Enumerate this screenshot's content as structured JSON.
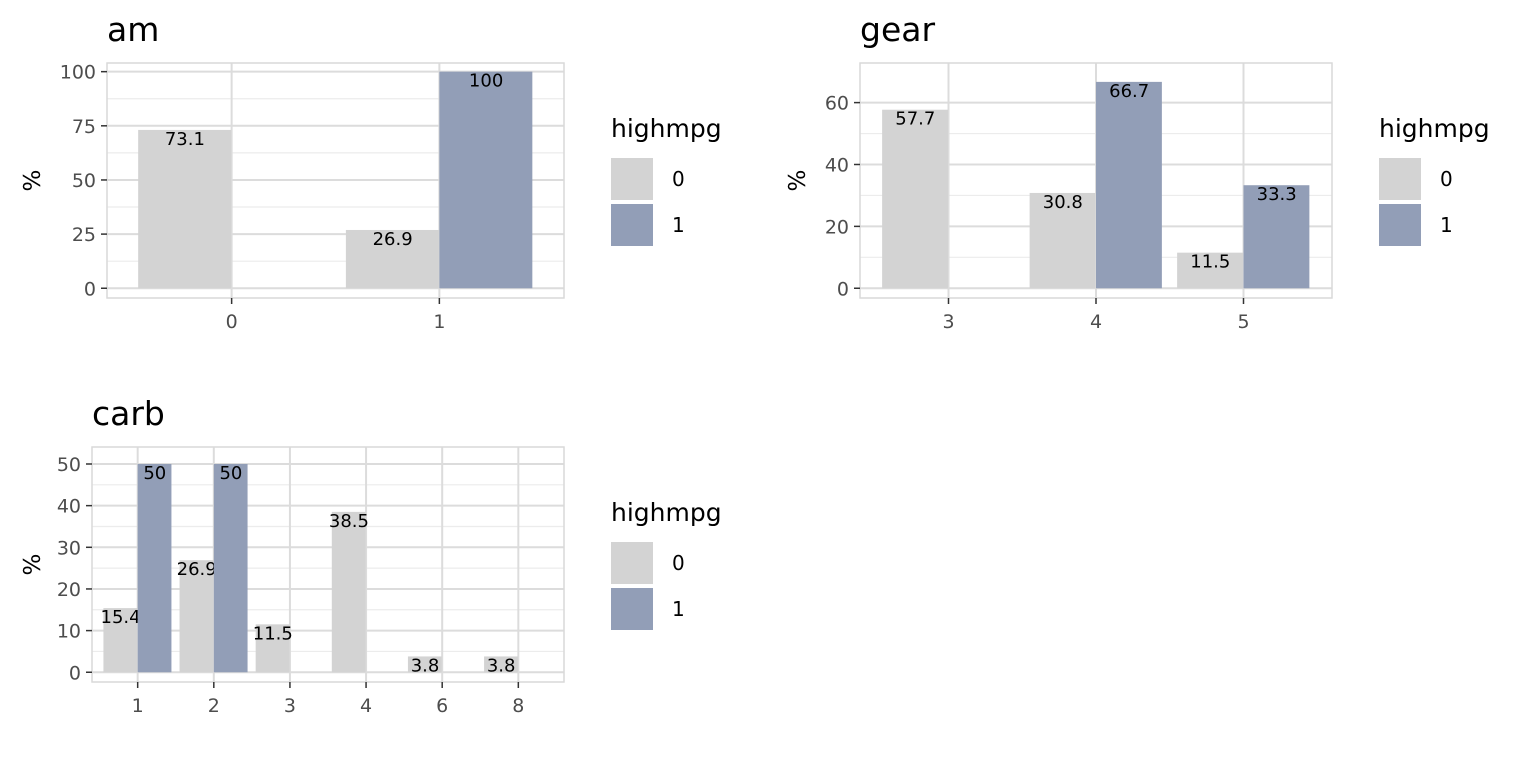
{
  "chart_data": [
    {
      "type": "bar",
      "title": "am",
      "xlabel": "",
      "ylabel": "%",
      "categories": [
        "0",
        "1"
      ],
      "ylim": [
        0,
        100
      ],
      "yticks": [
        0,
        25,
        50,
        75,
        100
      ],
      "legend_title": "highmpg",
      "legend_position": "right",
      "grid": true,
      "series": [
        {
          "name": "0",
          "color": "#d3d3d3",
          "values": [
            73.1,
            26.9
          ],
          "labels": [
            "73.1",
            "26.9"
          ]
        },
        {
          "name": "1",
          "color": "#929eb7",
          "values": [
            0,
            100
          ],
          "labels": [
            "",
            "100"
          ]
        }
      ]
    },
    {
      "type": "bar",
      "title": "gear",
      "xlabel": "",
      "ylabel": "%",
      "categories": [
        "3",
        "4",
        "5"
      ],
      "ylim": [
        0,
        70
      ],
      "yticks": [
        0,
        20,
        40,
        60
      ],
      "legend_title": "highmpg",
      "legend_position": "right",
      "grid": true,
      "series": [
        {
          "name": "0",
          "color": "#d3d3d3",
          "values": [
            57.7,
            30.8,
            11.5
          ],
          "labels": [
            "57.7",
            "30.8",
            "11.5"
          ]
        },
        {
          "name": "1",
          "color": "#929eb7",
          "values": [
            0,
            66.7,
            33.3
          ],
          "labels": [
            "",
            "66.7",
            "33.3"
          ]
        }
      ]
    },
    {
      "type": "bar",
      "title": "carb",
      "xlabel": "",
      "ylabel": "%",
      "categories": [
        "1",
        "2",
        "3",
        "4",
        "6",
        "8"
      ],
      "ylim": [
        0,
        52
      ],
      "yticks": [
        0,
        10,
        20,
        30,
        40,
        50
      ],
      "legend_title": "highmpg",
      "legend_position": "right",
      "grid": true,
      "series": [
        {
          "name": "0",
          "color": "#d3d3d3",
          "values": [
            15.4,
            26.9,
            11.5,
            38.5,
            3.8,
            3.8
          ],
          "labels": [
            "15.4",
            "26.9",
            "11.5",
            "38.5",
            "3.8",
            "3.8"
          ]
        },
        {
          "name": "1",
          "color": "#929eb7",
          "values": [
            50,
            50,
            0,
            0,
            0,
            0
          ],
          "labels": [
            "50",
            "50",
            "",
            "",
            "",
            ""
          ]
        }
      ]
    }
  ]
}
